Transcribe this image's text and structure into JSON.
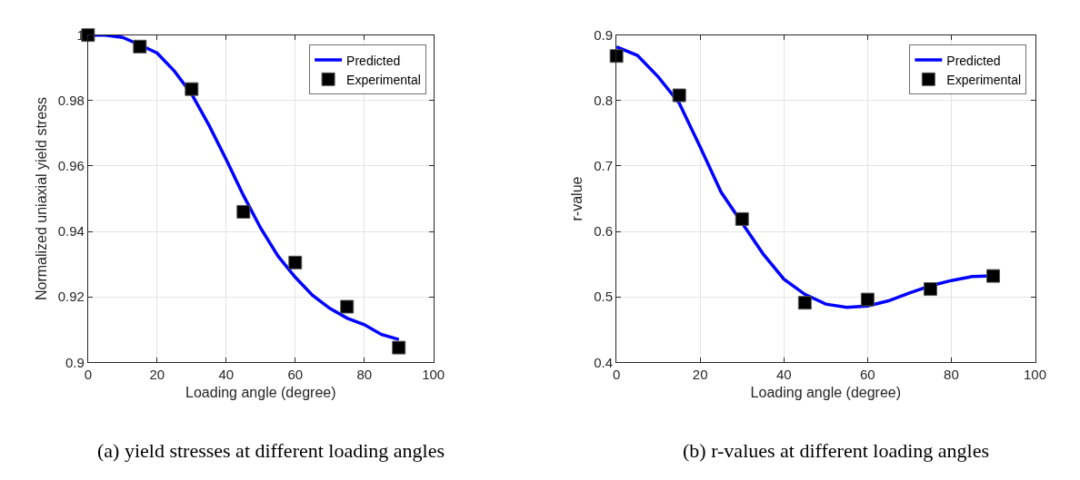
{
  "chart_data": [
    {
      "type": "line",
      "xlabel": "Loading angle (degree)",
      "ylabel": "Normalized uniaxial yield stress",
      "annotations": [
        "(a) yield stresses at different loading angles"
      ],
      "xlim": [
        0,
        100
      ],
      "xticks": [
        0,
        20,
        40,
        60,
        80,
        100
      ],
      "ylim": [
        0.9,
        1
      ],
      "yticks": [
        0.9,
        0.92,
        0.94,
        0.96,
        0.98,
        1
      ],
      "grid": true,
      "legend": "top right",
      "series": [
        {
          "name": "Predicted",
          "color": "#0000ff",
          "marker": "none",
          "line_style": "solid",
          "x": [
            0,
            5,
            10,
            15,
            20,
            25,
            30,
            35,
            40,
            45,
            50,
            55,
            60,
            65,
            70,
            75,
            80,
            85,
            90
          ],
          "values": [
            1.0,
            1.0,
            0.9993,
            0.997,
            0.9945,
            0.989,
            0.982,
            0.9725,
            0.962,
            0.951,
            0.941,
            0.9325,
            0.926,
            0.9205,
            0.9165,
            0.9135,
            0.9115,
            0.9085,
            0.907
          ]
        },
        {
          "name": "Experimental",
          "type": "scatter",
          "color": "#000000",
          "marker": "square",
          "x": [
            0,
            15,
            30,
            45,
            60,
            75,
            90
          ],
          "values": [
            1.0,
            0.9965,
            0.9835,
            0.946,
            0.9305,
            0.917,
            0.9045
          ]
        }
      ]
    },
    {
      "type": "line",
      "xlabel": "Loading angle (degree)",
      "ylabel": "r-value",
      "annotations": [
        "(b) r-values at different loading angles"
      ],
      "xlim": [
        0,
        100
      ],
      "xticks": [
        0,
        20,
        40,
        60,
        80,
        100
      ],
      "ylim": [
        0.4,
        0.9
      ],
      "yticks": [
        0.4,
        0.5,
        0.6,
        0.7,
        0.8,
        0.9
      ],
      "grid": true,
      "legend": "top right",
      "series": [
        {
          "name": "Predicted",
          "color": "#0000ff",
          "marker": "none",
          "line_style": "solid",
          "x": [
            0,
            5,
            10,
            15,
            20,
            25,
            30,
            35,
            40,
            45,
            50,
            55,
            60,
            65,
            70,
            75,
            80,
            85,
            90
          ],
          "values": [
            0.882,
            0.869,
            0.836,
            0.796,
            0.729,
            0.66,
            0.613,
            0.566,
            0.527,
            0.504,
            0.489,
            0.484,
            0.486,
            0.494,
            0.506,
            0.517,
            0.525,
            0.531,
            0.532
          ]
        },
        {
          "name": "Experimental",
          "type": "scatter",
          "color": "#000000",
          "marker": "square",
          "x": [
            0,
            15,
            30,
            45,
            60,
            75,
            90
          ],
          "values": [
            0.868,
            0.808,
            0.619,
            0.491,
            0.496,
            0.512,
            0.532
          ]
        }
      ]
    }
  ]
}
